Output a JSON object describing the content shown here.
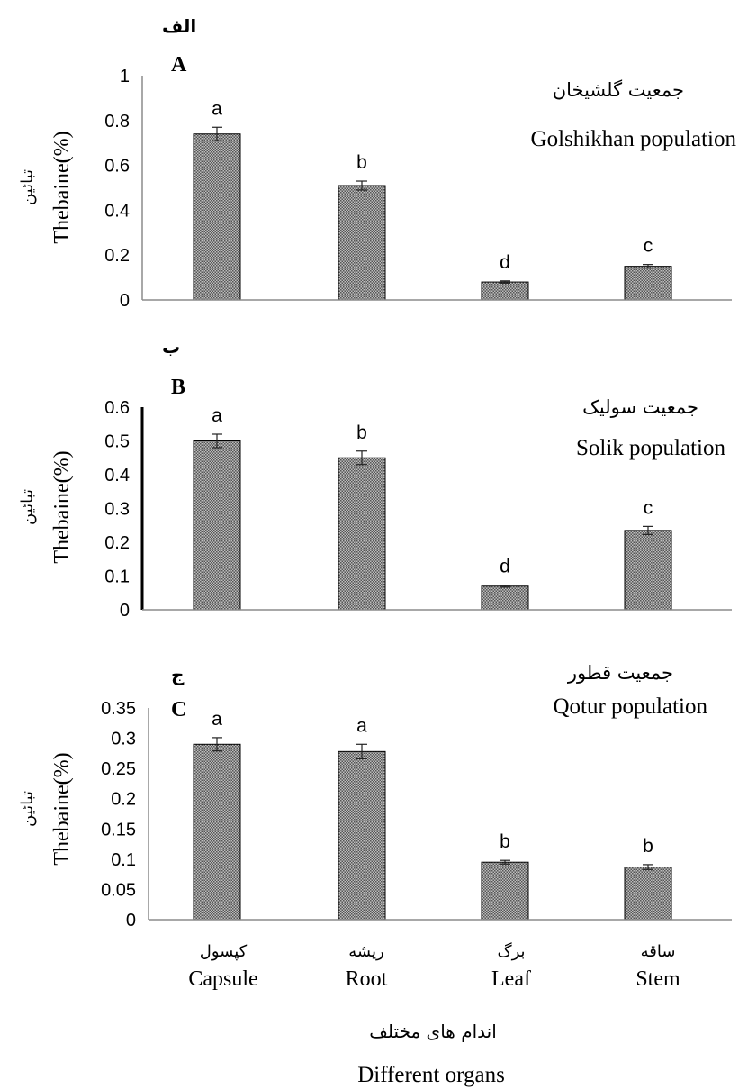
{
  "figure": {
    "xlabel_fa": "اندام های مختلف",
    "xlabel_en": "Different organs",
    "categories_fa": [
      "کپسول",
      "ریشه",
      "برگ",
      "ساقه"
    ],
    "categories_en": [
      "Capsule",
      "Root",
      "Leaf",
      "Stem"
    ]
  },
  "colors": {
    "bar_fill": "#9a9a9a",
    "bar_stroke": "#000000",
    "axis": "#8c8c8c"
  },
  "chart_data": [
    {
      "type": "bar",
      "panel_letter_fa": "الف",
      "panel_letter_en": "A",
      "title_fa": "جمعیت گلشیخان",
      "title_en": "Golshikhan population",
      "ylabel_fa": "تبائین",
      "ylabel_en": "Thebaine(%)",
      "categories": [
        "Capsule",
        "Root",
        "Leaf",
        "Stem"
      ],
      "values": [
        0.74,
        0.51,
        0.08,
        0.15
      ],
      "errors": [
        0.03,
        0.02,
        0.005,
        0.008
      ],
      "significance": [
        "a",
        "b",
        "d",
        "c"
      ],
      "ylim": [
        0,
        1
      ],
      "yticks": [
        "0",
        "0.2",
        "0.4",
        "0.6",
        "0.8",
        "1"
      ],
      "grid": false
    },
    {
      "type": "bar",
      "panel_letter_fa": "ب",
      "panel_letter_en": "B",
      "title_fa": "جمعیت سولیک",
      "title_en": "Solik population",
      "ylabel_fa": "تبائین",
      "ylabel_en": "Thebaine(%)",
      "categories": [
        "Capsule",
        "Root",
        "Leaf",
        "Stem"
      ],
      "values": [
        0.5,
        0.45,
        0.07,
        0.235
      ],
      "errors": [
        0.02,
        0.02,
        0.003,
        0.012
      ],
      "significance": [
        "a",
        "b",
        "d",
        "c"
      ],
      "ylim": [
        0,
        0.6
      ],
      "yticks": [
        "0",
        "0.1",
        "0.2",
        "0.3",
        "0.4",
        "0.5",
        "0.6"
      ],
      "grid": false
    },
    {
      "type": "bar",
      "panel_letter_fa": "ج",
      "panel_letter_en": "C",
      "title_fa": "جمعیت قطور",
      "title_en": "Qotur population",
      "ylabel_fa": "تبائین",
      "ylabel_en": "Thebaine(%)",
      "categories": [
        "Capsule",
        "Root",
        "Leaf",
        "Stem"
      ],
      "values": [
        0.29,
        0.278,
        0.095,
        0.087
      ],
      "errors": [
        0.011,
        0.012,
        0.003,
        0.004
      ],
      "significance": [
        "a",
        "a",
        "b",
        "b"
      ],
      "ylim": [
        0,
        0.35
      ],
      "yticks": [
        "0",
        "0.05",
        "0.1",
        "0.15",
        "0.2",
        "0.25",
        "0.3",
        "0.35"
      ],
      "grid": false
    }
  ]
}
